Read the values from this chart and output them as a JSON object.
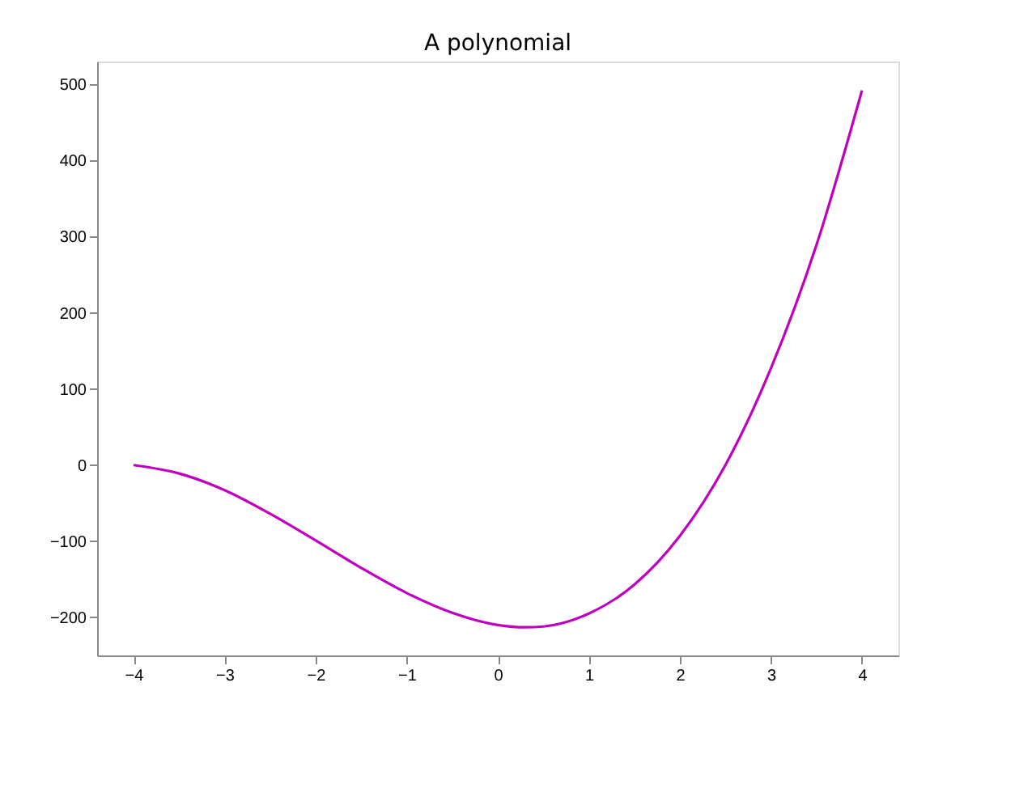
{
  "chart_data": {
    "type": "line",
    "title": "A polynomial",
    "x": [
      -4,
      -3.5,
      -3,
      -2.5,
      -2,
      -1.5,
      -1,
      -0.5,
      0,
      0.3,
      0.5,
      1,
      1.5,
      2,
      2.5,
      3,
      3.5,
      4
    ],
    "series": [
      {
        "color": "#bf00bf",
        "values": [
          0,
          -11,
          -33,
          -64,
          -99,
          -135,
          -168,
          -194,
          -210,
          -213,
          -212,
          -195,
          -157,
          -93,
          0,
          127,
          289,
          492
        ]
      }
    ],
    "xlim": [
      -4.4,
      4.4
    ],
    "xticks": [
      -4,
      -3,
      -2,
      -1,
      0,
      1,
      2,
      3,
      4
    ],
    "ylim": [
      -250,
      530
    ],
    "yticks": [
      -200,
      -100,
      0,
      100,
      200,
      300,
      400,
      500
    ],
    "grid": false,
    "marker": "none",
    "line_style": "solid"
  }
}
